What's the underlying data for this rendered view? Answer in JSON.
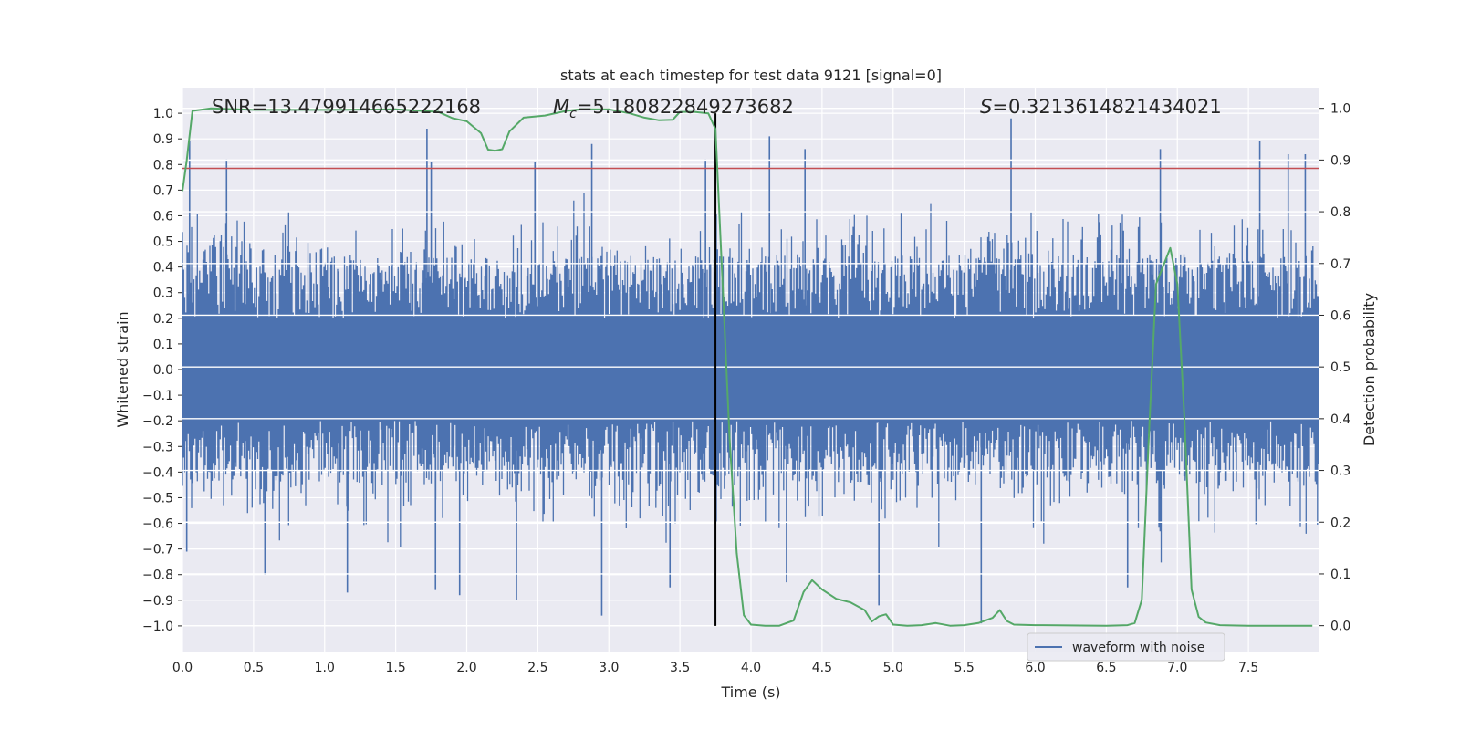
{
  "chart_data": {
    "type": "line",
    "title": "stats at each timestep for test data 9121 [signal=0]",
    "xlabel": "Time (s)",
    "ylabel_left": "Whitened strain",
    "ylabel_right": "Detection probability",
    "xlim": [
      0.0,
      8.0
    ],
    "ylim_left": [
      -1.1,
      1.1
    ],
    "ylim_right": [
      -0.05,
      1.04
    ],
    "x_ticks": [
      "0.0",
      "0.5",
      "1.0",
      "1.5",
      "2.0",
      "2.5",
      "3.0",
      "3.5",
      "4.0",
      "4.5",
      "5.0",
      "5.5",
      "6.0",
      "6.5",
      "7.0",
      "7.5"
    ],
    "y_left_ticks": [
      "1.0",
      "0.9",
      "0.8",
      "0.7",
      "0.6",
      "0.5",
      "0.4",
      "0.3",
      "0.2",
      "0.1",
      "0.0",
      "−0.1",
      "−0.2",
      "−0.3",
      "−0.4",
      "−0.5",
      "−0.6",
      "−0.7",
      "−0.8",
      "−0.9",
      "−1.0"
    ],
    "y_right_ticks": [
      "1.0",
      "0.9",
      "0.8",
      "0.7",
      "0.6",
      "0.5",
      "0.4",
      "0.3",
      "0.2",
      "0.1",
      "0.0"
    ],
    "grid": true,
    "annotations": {
      "snr": "SNR=13.479914665222168",
      "mc_symbol": "M",
      "mc_subscript": "c",
      "mc_value": "=5.180822849273682",
      "s_symbol": "S",
      "s_value": "=0.3213614821434021"
    },
    "threshold_line": {
      "axis": "left",
      "y": 0.785,
      "color": "#c44e52"
    },
    "vertical_marker": {
      "x": 3.75,
      "ymin": -1.0,
      "ymax": 1.0,
      "color": "#000000"
    },
    "legend": {
      "label": "waveform with noise",
      "location": "lower center-right"
    },
    "series": [
      {
        "name": "waveform with noise",
        "axis": "left",
        "color": "#4c72b0",
        "render": "dense noise band",
        "core_band": [
          -0.2,
          0.2
        ],
        "typical_envelope": [
          -0.45,
          0.45
        ],
        "max_value": 0.98,
        "min_value": -0.99,
        "peaks": [
          {
            "x": 0.05,
            "y": 0.89
          },
          {
            "x": 0.31,
            "y": 0.82
          },
          {
            "x": 1.72,
            "y": 0.94
          },
          {
            "x": 1.75,
            "y": 0.81
          },
          {
            "x": 2.48,
            "y": 0.81
          },
          {
            "x": 2.88,
            "y": 0.88
          },
          {
            "x": 3.68,
            "y": 0.82
          },
          {
            "x": 4.13,
            "y": 0.91
          },
          {
            "x": 4.38,
            "y": 0.86
          },
          {
            "x": 5.83,
            "y": 0.98
          },
          {
            "x": 6.88,
            "y": 0.86
          },
          {
            "x": 7.58,
            "y": 0.89
          },
          {
            "x": 7.78,
            "y": 0.84
          },
          {
            "x": 7.9,
            "y": 0.84
          }
        ],
        "troughs": [
          {
            "x": 0.03,
            "y": -0.71
          },
          {
            "x": 0.58,
            "y": -0.8
          },
          {
            "x": 1.16,
            "y": -0.87
          },
          {
            "x": 1.78,
            "y": -0.86
          },
          {
            "x": 1.95,
            "y": -0.88
          },
          {
            "x": 2.35,
            "y": -0.9
          },
          {
            "x": 2.95,
            "y": -0.96
          },
          {
            "x": 3.43,
            "y": -0.85
          },
          {
            "x": 4.25,
            "y": -0.83
          },
          {
            "x": 4.9,
            "y": -0.92
          },
          {
            "x": 5.62,
            "y": -0.99
          },
          {
            "x": 6.65,
            "y": -0.85
          }
        ]
      },
      {
        "name": "detection probability",
        "axis": "right",
        "color": "#55a868",
        "x": [
          0.0,
          0.03,
          0.07,
          0.2,
          0.5,
          1.0,
          1.5,
          1.8,
          1.9,
          2.0,
          2.1,
          2.15,
          2.2,
          2.25,
          2.3,
          2.4,
          2.55,
          2.7,
          2.8,
          3.0,
          3.15,
          3.25,
          3.35,
          3.45,
          3.5,
          3.55,
          3.6,
          3.7,
          3.75,
          3.8,
          3.85,
          3.9,
          3.95,
          4.0,
          4.1,
          4.2,
          4.3,
          4.37,
          4.43,
          4.5,
          4.6,
          4.7,
          4.8,
          4.85,
          4.9,
          4.95,
          5.0,
          5.1,
          5.2,
          5.3,
          5.4,
          5.5,
          5.6,
          5.7,
          5.75,
          5.8,
          5.85,
          6.0,
          6.5,
          6.65,
          6.7,
          6.75,
          6.8,
          6.85,
          6.95,
          7.0,
          7.05,
          7.1,
          7.15,
          7.2,
          7.3,
          7.5,
          7.95
        ],
        "y": [
          0.84,
          0.9,
          0.995,
          1.0,
          0.997,
          0.997,
          0.998,
          0.993,
          0.981,
          0.975,
          0.952,
          0.92,
          0.918,
          0.921,
          0.955,
          0.982,
          0.986,
          0.995,
          0.998,
          0.998,
          0.99,
          0.982,
          0.977,
          0.978,
          0.993,
          0.993,
          0.993,
          0.99,
          0.96,
          0.66,
          0.36,
          0.14,
          0.02,
          0.002,
          0.0,
          0.0,
          0.01,
          0.065,
          0.088,
          0.07,
          0.052,
          0.045,
          0.03,
          0.008,
          0.018,
          0.022,
          0.002,
          0.0,
          0.001,
          0.005,
          0.0,
          0.001,
          0.005,
          0.015,
          0.03,
          0.009,
          0.002,
          0.001,
          0.0,
          0.001,
          0.005,
          0.05,
          0.37,
          0.66,
          0.73,
          0.66,
          0.4,
          0.07,
          0.017,
          0.006,
          0.001,
          0.0,
          0.0
        ]
      }
    ]
  }
}
